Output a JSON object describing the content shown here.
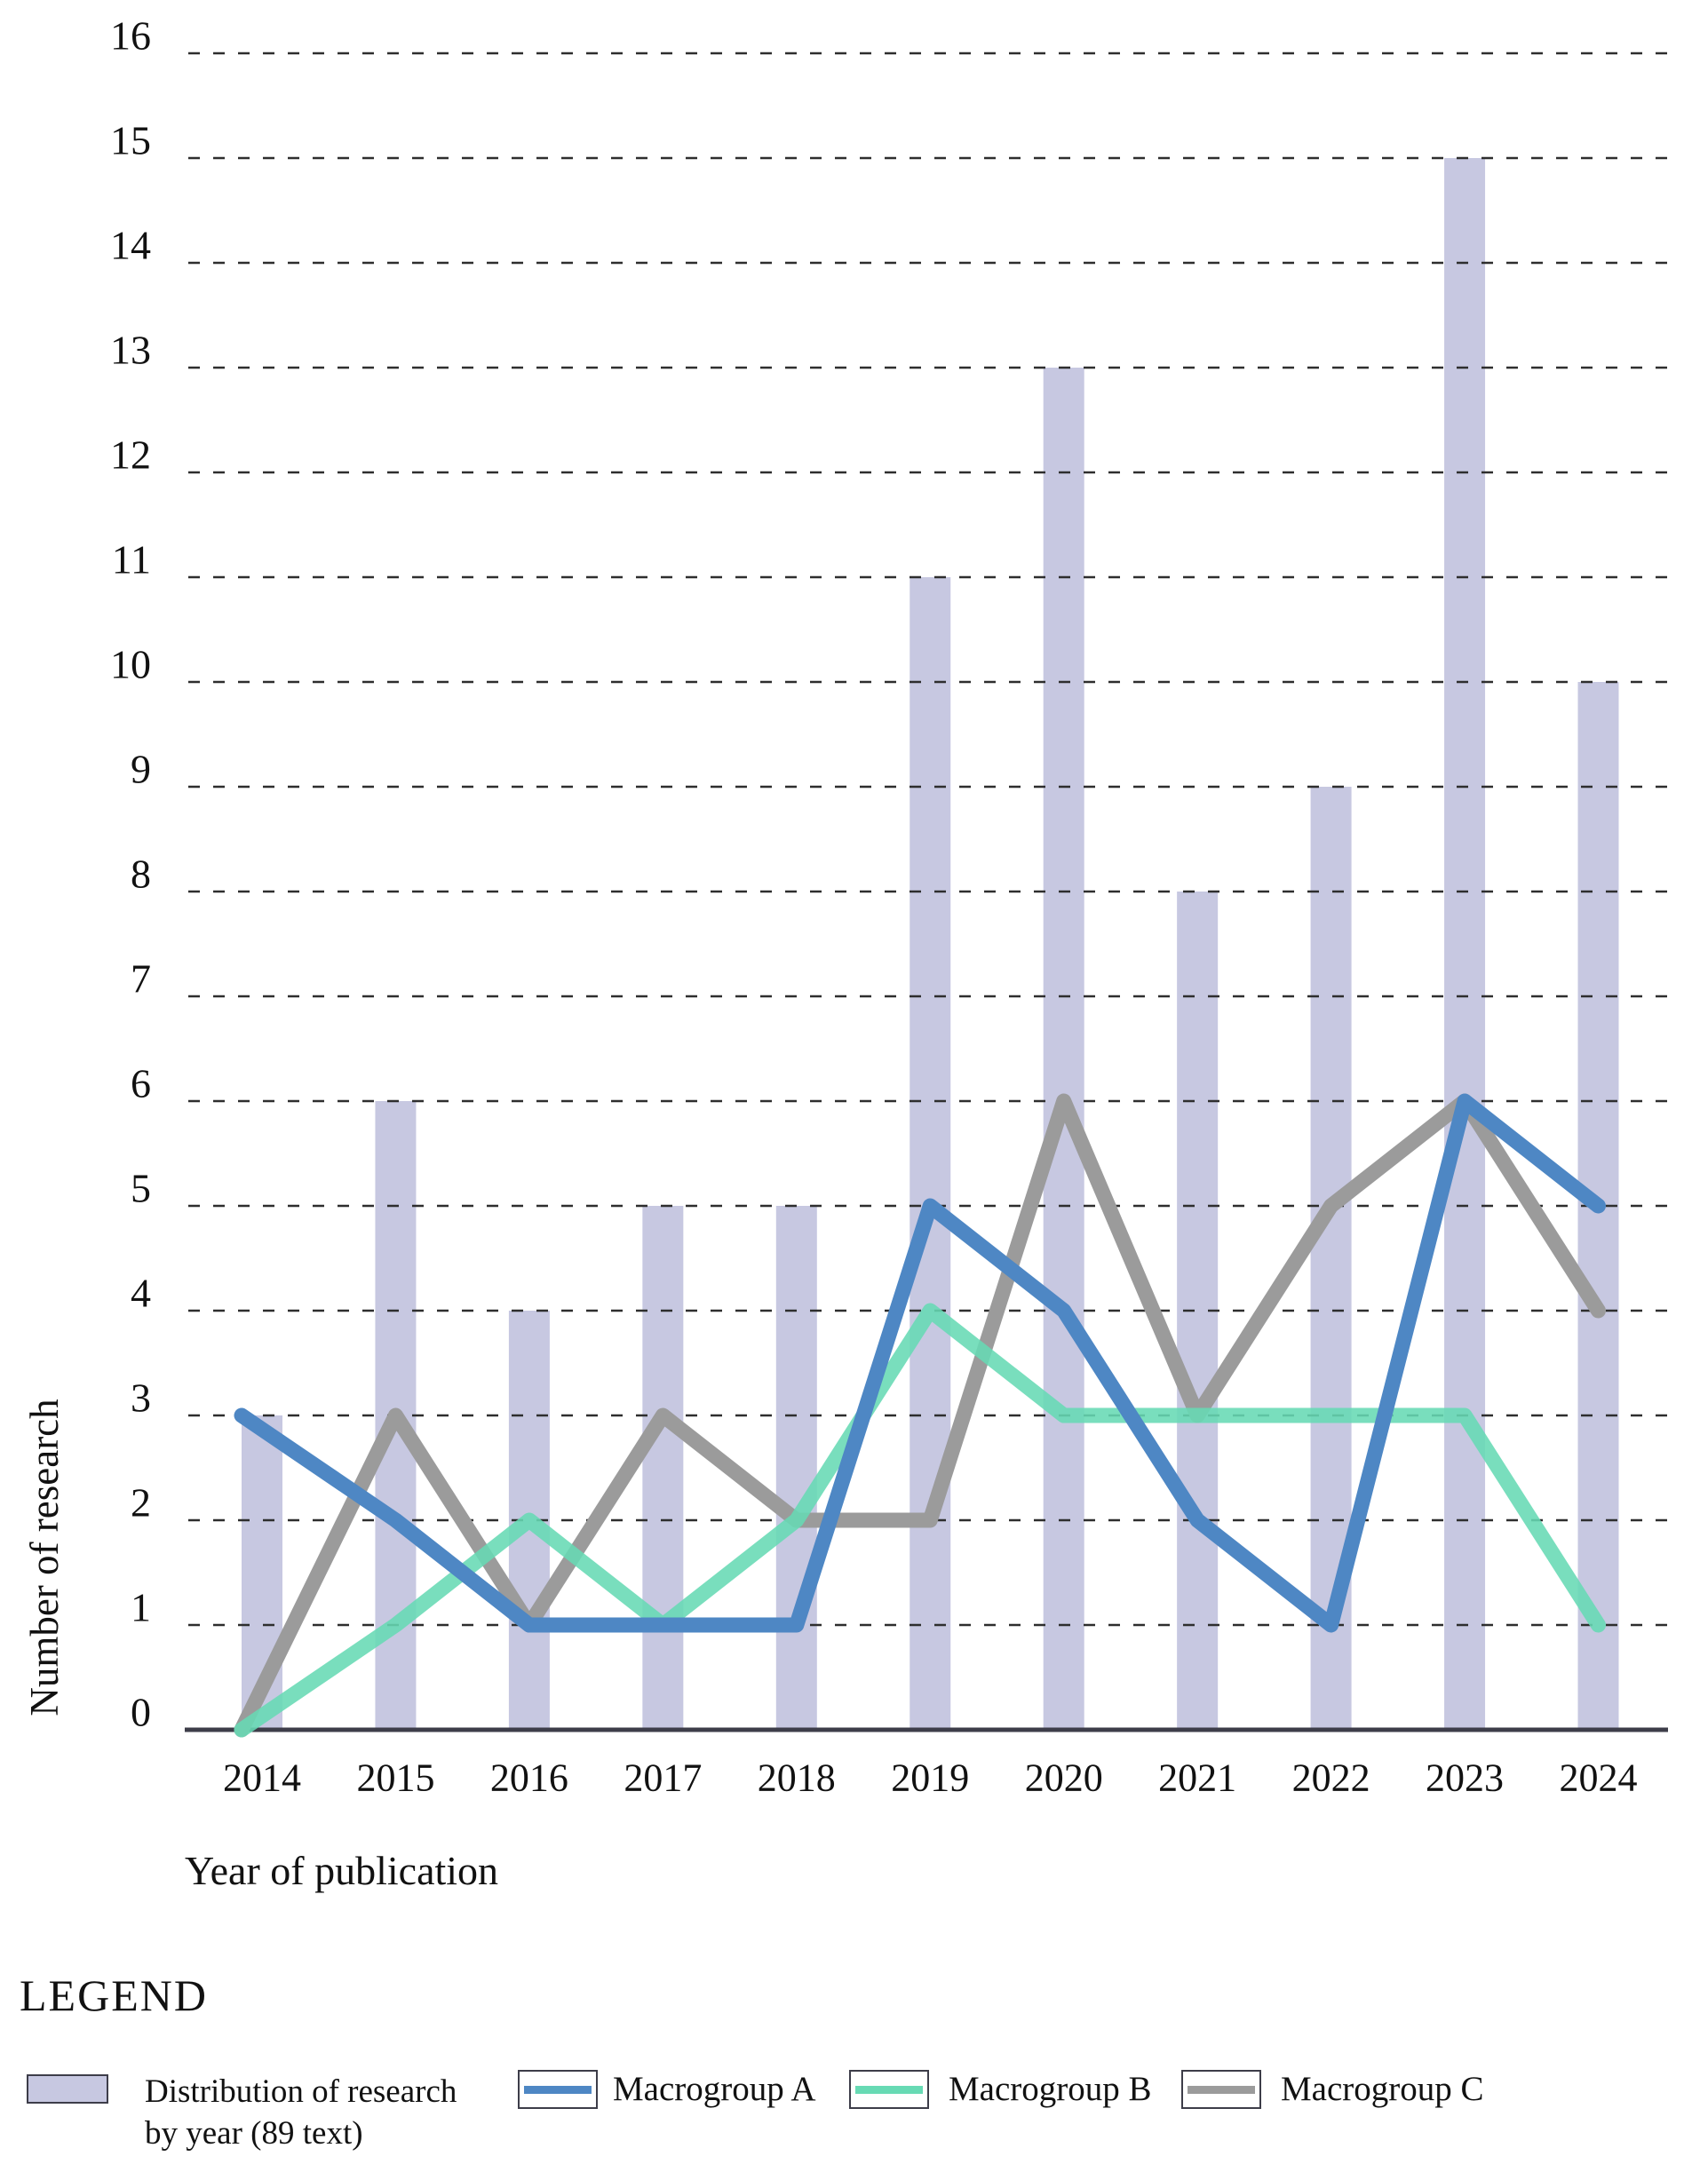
{
  "page": {
    "y_axis_title": "Number of research",
    "x_axis_title": "Year of publication"
  },
  "chart_data": {
    "type": "bar+line",
    "title": "",
    "xlabel": "Year of publication",
    "ylabel": "Number of research",
    "categories": [
      "2014",
      "2015",
      "2016",
      "2017",
      "2018",
      "2019",
      "2020",
      "2021",
      "2022",
      "2023",
      "2024"
    ],
    "y_ticks": [
      0,
      1,
      2,
      3,
      4,
      5,
      6,
      7,
      8,
      9,
      10,
      11,
      12,
      13,
      14,
      15,
      16
    ],
    "ylim": [
      0,
      16
    ],
    "grid": "horizontal dashed lines on",
    "legend_position": "bottom",
    "bars": {
      "name": "Distribution of research by year (89 text)",
      "values": [
        3,
        6,
        4,
        5,
        5,
        11,
        13,
        8,
        9,
        15,
        10
      ],
      "color": "#c7c8e1"
    },
    "series": [
      {
        "name": "Macrogroup A",
        "values": [
          3,
          2,
          1,
          1,
          1,
          5,
          4,
          2,
          1,
          6,
          5
        ],
        "color": "#4e87c4"
      },
      {
        "name": "Macrogroup B",
        "values": [
          0,
          1,
          2,
          1,
          2,
          4,
          3,
          3,
          3,
          3,
          1
        ],
        "color": "#67dab4"
      },
      {
        "name": "Macrogroup C",
        "values": [
          0,
          3,
          1,
          3,
          2,
          2,
          6,
          3,
          5,
          6,
          4
        ],
        "color": "#9b9b9b"
      }
    ]
  },
  "legend": {
    "heading": "LEGEND",
    "items": [
      {
        "label": "Distribution of research by year (89 text)",
        "label_line1": "Distribution of research",
        "label_line2": "by year (89 text)",
        "marker": "bar-swatch"
      },
      {
        "label": "Macrogroup A",
        "marker": "line"
      },
      {
        "label": "Macrogroup B",
        "marker": "line"
      },
      {
        "label": "Macrogroup C",
        "marker": "line"
      }
    ]
  }
}
